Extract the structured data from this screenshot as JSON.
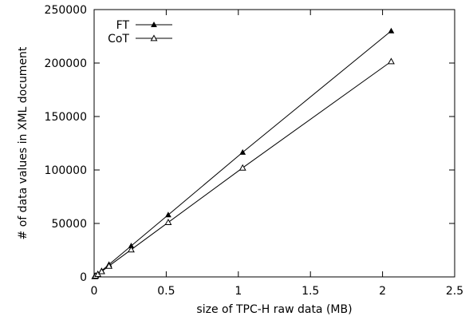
{
  "chart_data": {
    "type": "line",
    "title": "",
    "xlabel": "size of TPC-H raw data (MB)",
    "ylabel": "# of data values in XML document",
    "xlim": [
      0,
      2.5
    ],
    "ylim": [
      0,
      250000
    ],
    "x_ticks": [
      0,
      0.5,
      1,
      1.5,
      2,
      2.5
    ],
    "x_tick_labels": [
      "0",
      "0.5",
      "1",
      "1.5",
      "2",
      "2.5"
    ],
    "y_ticks": [
      0,
      50000,
      100000,
      150000,
      200000,
      250000
    ],
    "y_tick_labels": [
      "0",
      "50000",
      "100000",
      "150000",
      "200000",
      "250000"
    ],
    "grid": false,
    "legend_position": "top-left",
    "series": [
      {
        "name": "FT",
        "marker": "filled-triangle",
        "points": [
          {
            "x": 0.005,
            "y": 600
          },
          {
            "x": 0.01,
            "y": 1150
          },
          {
            "x": 0.026,
            "y": 2900
          },
          {
            "x": 0.052,
            "y": 5800
          },
          {
            "x": 0.103,
            "y": 11600
          },
          {
            "x": 0.257,
            "y": 29000
          },
          {
            "x": 0.514,
            "y": 58000
          },
          {
            "x": 1.03,
            "y": 116500
          },
          {
            "x": 2.06,
            "y": 230000
          }
        ]
      },
      {
        "name": "CoT",
        "marker": "open-triangle",
        "points": [
          {
            "x": 0.005,
            "y": 500
          },
          {
            "x": 0.01,
            "y": 1000
          },
          {
            "x": 0.026,
            "y": 2550
          },
          {
            "x": 0.052,
            "y": 5100
          },
          {
            "x": 0.103,
            "y": 10200
          },
          {
            "x": 0.257,
            "y": 25500
          },
          {
            "x": 0.514,
            "y": 51000
          },
          {
            "x": 1.03,
            "y": 102000
          },
          {
            "x": 2.06,
            "y": 201500
          }
        ]
      }
    ]
  }
}
